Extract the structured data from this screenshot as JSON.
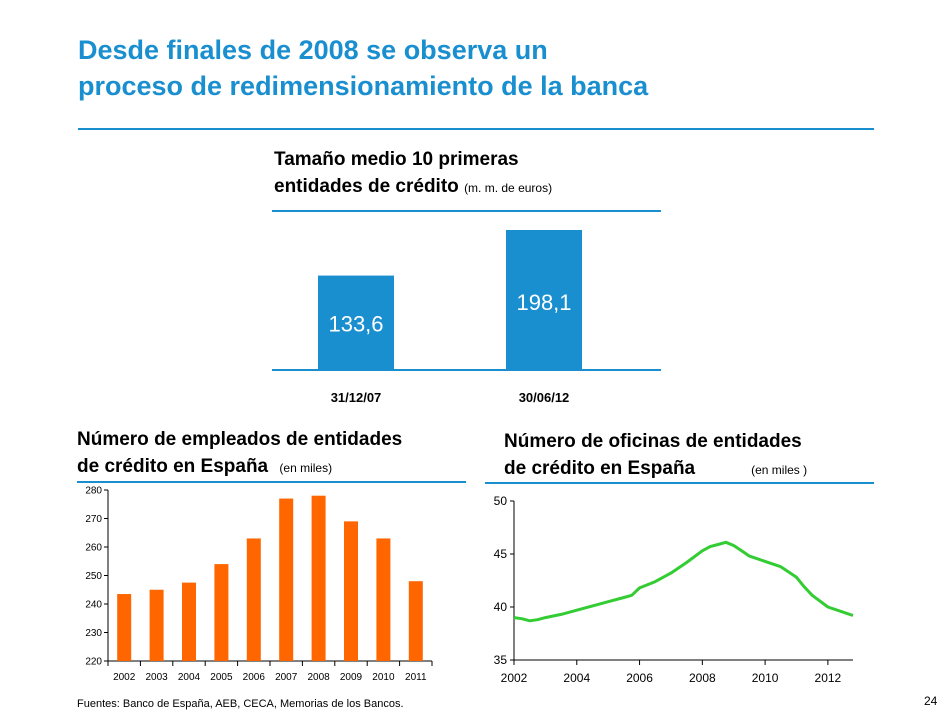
{
  "title_line1": "Desde finales de 2008 se observa un",
  "title_line2": "proceso de redimensionamiento de la banca",
  "colors": {
    "accent": "#1a8fcf",
    "bar_orange": "#ff6600",
    "line_green": "#33cc33"
  },
  "chart_data": [
    {
      "type": "bar",
      "title_line1": "Tamaño medio 10 primeras",
      "title_line2": "entidades de crédito",
      "unit": "(m. m. de euros)",
      "categories": [
        "31/12/07",
        "30/06/12"
      ],
      "values": [
        133.6,
        198.1
      ],
      "value_labels": [
        "133,6",
        "198,1"
      ]
    },
    {
      "type": "bar",
      "title_line1": "Número de empleados de entidades",
      "title_line2": "de crédito en España",
      "unit": "(en miles)",
      "categories": [
        "2002",
        "2003",
        "2004",
        "2005",
        "2006",
        "2007",
        "2008",
        "2009",
        "2010",
        "2011"
      ],
      "values": [
        243.5,
        245,
        247.5,
        254,
        263,
        277,
        278,
        269,
        263,
        248
      ],
      "ylim": [
        220,
        280
      ],
      "yticks": [
        220,
        230,
        240,
        250,
        260,
        270,
        280
      ]
    },
    {
      "type": "line",
      "title_line1": "Número de oficinas de entidades",
      "title_line2": "de crédito en España",
      "unit": "(en miles )",
      "x": [
        2002.0,
        2002.25,
        2002.5,
        2002.75,
        2003.0,
        2003.5,
        2004.0,
        2004.5,
        2005.0,
        2005.5,
        2005.75,
        2006.0,
        2006.5,
        2007.0,
        2007.5,
        2008.0,
        2008.25,
        2008.5,
        2008.75,
        2009.0,
        2009.25,
        2009.5,
        2010.0,
        2010.5,
        2011.0,
        2011.25,
        2011.5,
        2012.0,
        2012.5,
        2012.8
      ],
      "y": [
        39.0,
        38.9,
        38.7,
        38.8,
        39.0,
        39.3,
        39.7,
        40.1,
        40.5,
        40.9,
        41.1,
        41.8,
        42.4,
        43.2,
        44.2,
        45.3,
        45.7,
        45.9,
        46.1,
        45.8,
        45.3,
        44.8,
        44.3,
        43.8,
        42.8,
        41.9,
        41.1,
        40.0,
        39.5,
        39.2
      ],
      "ylim": [
        35,
        50
      ],
      "yticks": [
        35,
        40,
        45,
        50
      ],
      "xlim": [
        2002,
        2012.8
      ],
      "xticks": [
        2002,
        2004,
        2006,
        2008,
        2010,
        2012
      ]
    }
  ],
  "footer": "Fuentes: Banco de España, AEB, CECA, Memorias de los Bancos.",
  "page_number": "24"
}
